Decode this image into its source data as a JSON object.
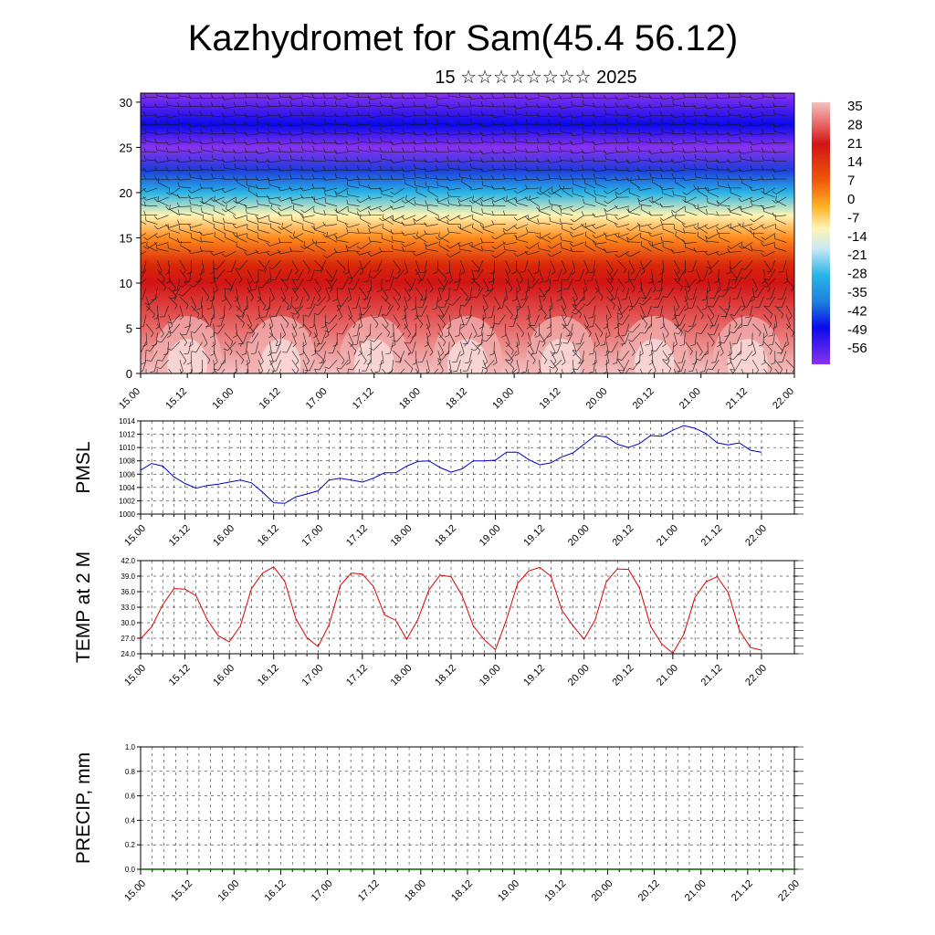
{
  "title": "Kazhydromet for Sam(45.4 56.12)",
  "subtitle": "15 ☆☆☆☆☆☆☆☆ 2025",
  "x_tick_labels": [
    "15.00",
    "15.12",
    "16.00",
    "16.12",
    "17.00",
    "17.12",
    "18.00",
    "18.12",
    "19.00",
    "19.12",
    "20.00",
    "20.12",
    "21.00",
    "21.12",
    "22.00"
  ],
  "chart_data": [
    {
      "type": "heatmap",
      "description_of_axes": "time vs height level",
      "x_ticks": [
        "15.00",
        "15.12",
        "16.00",
        "16.12",
        "17.00",
        "17.12",
        "18.00",
        "18.12",
        "19.00",
        "19.12",
        "20.00",
        "20.12",
        "21.00",
        "21.12",
        "22.00"
      ],
      "ylim": [
        0,
        31
      ],
      "y_ticks": [
        0,
        5,
        10,
        15,
        20,
        25,
        30
      ],
      "colorbar": {
        "labels": [
          "35",
          "28",
          "21",
          "14",
          "7",
          "0",
          "-7",
          "-14",
          "-21",
          "-28",
          "-35",
          "-42",
          "-49",
          "-56"
        ],
        "colors": [
          "#f3c2c2",
          "#e86a6a",
          "#d21414",
          "#d8280a",
          "#ee5a0a",
          "#ff8c1e",
          "#ffcf3c",
          "#fff5b4",
          "#c8e8f5",
          "#28b4e6",
          "#1e82dc",
          "#1e3cdc",
          "#0a0aeb",
          "#8a32ee"
        ]
      },
      "vertical_profile": [
        {
          "y": 0,
          "value": 35
        },
        {
          "y": 5,
          "value": 30
        },
        {
          "y": 10,
          "value": 24
        },
        {
          "y": 12,
          "value": 12
        },
        {
          "y": 15,
          "value": 0
        },
        {
          "y": 17.5,
          "value": -14
        },
        {
          "y": 20,
          "value": -28
        },
        {
          "y": 22.5,
          "value": -40
        },
        {
          "y": 25,
          "value": -56
        },
        {
          "y": 27.5,
          "value": -50
        },
        {
          "y": 31,
          "value": -56
        }
      ],
      "overlay": "wind barbs"
    },
    {
      "type": "line",
      "ylabel": "PMSL",
      "ylim": [
        1000,
        1014
      ],
      "y_ticks": [
        "1000",
        "1002",
        "1004",
        "1006",
        "1008",
        "1010",
        "1012",
        "1014"
      ],
      "x_ticks": [
        "15.00",
        "15.12",
        "16.00",
        "16.12",
        "17.00",
        "17.12",
        "18.00",
        "18.12",
        "19.00",
        "19.12",
        "20.00",
        "20.12",
        "21.00",
        "21.12",
        "22.00"
      ],
      "grid": true,
      "color": "#0000cc",
      "x": [
        0,
        3,
        6,
        9,
        12,
        15,
        18,
        21,
        24,
        27,
        30,
        33,
        36,
        39,
        42,
        45,
        48,
        51,
        54,
        57,
        60,
        63,
        66,
        69,
        72,
        75,
        78,
        81,
        84,
        87,
        90,
        93,
        96,
        99,
        102,
        105,
        108,
        111,
        114,
        117,
        120,
        123,
        126,
        129,
        132,
        135,
        138,
        141,
        144,
        147,
        150,
        153,
        156,
        159,
        162,
        165,
        168
      ],
      "values": [
        1006.6,
        1007.6,
        1007.2,
        1005.6,
        1004.6,
        1003.9,
        1004.3,
        1004.5,
        1004.8,
        1005.1,
        1004.7,
        1003.3,
        1001.7,
        1001.6,
        1002.6,
        1003.0,
        1003.5,
        1005.1,
        1005.4,
        1005.1,
        1004.8,
        1005.4,
        1006.2,
        1006.2,
        1007.2,
        1007.9,
        1008.0,
        1007.0,
        1006.3,
        1006.8,
        1008.0,
        1008.0,
        1008.1,
        1009.3,
        1009.3,
        1008.2,
        1007.4,
        1007.7,
        1008.6,
        1009.2,
        1010.5,
        1011.8,
        1011.6,
        1010.5,
        1010.0,
        1010.6,
        1011.8,
        1011.7,
        1012.6,
        1013.3,
        1012.9,
        1012.1,
        1010.7,
        1010.4,
        1010.7,
        1009.6,
        1009.3
      ]
    },
    {
      "type": "line",
      "ylabel": "TEMP at 2 M",
      "ylim": [
        24.0,
        42.0
      ],
      "y_ticks": [
        "24.0",
        "27.0",
        "30.0",
        "33.0",
        "36.0",
        "39.0",
        "42.0"
      ],
      "x_ticks": [
        "15.00",
        "15.12",
        "16.00",
        "16.12",
        "17.00",
        "17.12",
        "18.00",
        "18.12",
        "19.00",
        "19.12",
        "20.00",
        "20.12",
        "21.00",
        "21.12",
        "22.00"
      ],
      "grid": true,
      "color": "#dd0000",
      "x": [
        0,
        3,
        6,
        9,
        12,
        15,
        18,
        21,
        24,
        27,
        30,
        33,
        36,
        39,
        42,
        45,
        48,
        51,
        54,
        57,
        60,
        63,
        66,
        69,
        72,
        75,
        78,
        81,
        84,
        87,
        90,
        93,
        96,
        99,
        102,
        105,
        108,
        111,
        114,
        117,
        120,
        123,
        126,
        129,
        132,
        135,
        138,
        141,
        144,
        147,
        150,
        153,
        156,
        159,
        162,
        165,
        168
      ],
      "values": [
        26.9,
        29.2,
        33.5,
        36.6,
        36.5,
        35.2,
        30.6,
        27.5,
        26.3,
        29.4,
        36.6,
        39.6,
        40.8,
        38.0,
        30.8,
        27.1,
        25.4,
        29.6,
        37.2,
        39.6,
        39.4,
        37.0,
        31.5,
        30.5,
        26.8,
        30.6,
        36.3,
        39.2,
        38.9,
        35.2,
        29.4,
        26.7,
        24.8,
        30.6,
        37.6,
        40.0,
        40.7,
        39.0,
        32.4,
        29.4,
        26.8,
        30.6,
        37.9,
        40.4,
        40.3,
        36.7,
        29.3,
        25.9,
        24.1,
        27.8,
        34.9,
        37.9,
        38.9,
        35.8,
        28.6,
        25.2,
        24.7
      ]
    },
    {
      "type": "line",
      "ylabel": "PRECIP, mm",
      "ylim": [
        0.0,
        1.0
      ],
      "y_ticks": [
        "0.0",
        "0.2",
        "0.4",
        "0.6",
        "0.8",
        "1.0"
      ],
      "x_ticks": [
        "15.00",
        "15.12",
        "16.00",
        "16.12",
        "17.00",
        "17.12",
        "18.00",
        "18.12",
        "19.00",
        "19.12",
        "20.00",
        "20.12",
        "21.00",
        "21.12",
        "22.00"
      ],
      "grid": true,
      "color": "#006600",
      "values_all_zero": true
    }
  ]
}
